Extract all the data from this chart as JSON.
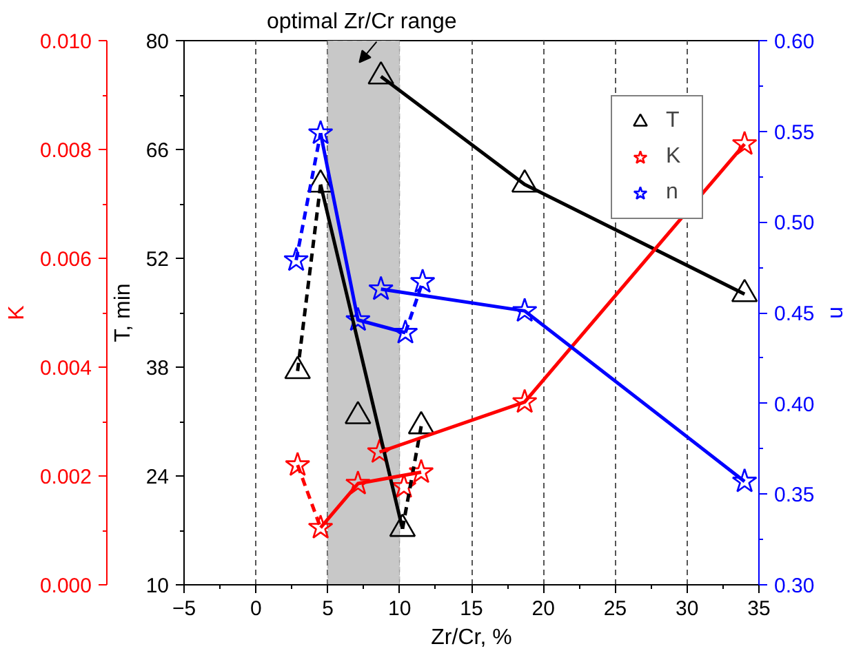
{
  "chart_data": {
    "type": "scatter",
    "xlabel": "Zr/Cr, %",
    "ylabel": "K",
    "y2label": "n",
    "y3label": "T, min",
    "xlim": [
      -5,
      35
    ],
    "xticks": [
      -5,
      0,
      5,
      10,
      15,
      20,
      25,
      30,
      35
    ],
    "ylim": [
      0,
      0.01
    ],
    "yticks": [
      {
        "value": 0,
        "label": "0.000"
      },
      {
        "value": 0.002,
        "label": "0.002"
      },
      {
        "value": 0.004,
        "label": "0.004"
      },
      {
        "value": 0.006,
        "label": "0.006"
      },
      {
        "value": 0.008,
        "label": "0.008"
      },
      {
        "value": 0.01,
        "label": "0.010"
      }
    ],
    "y2lim": [
      0.3,
      0.6
    ],
    "y2ticks": [
      {
        "value": 0.3,
        "label": "0.30"
      },
      {
        "value": 0.35,
        "label": "0.35"
      },
      {
        "value": 0.4,
        "label": "0.40"
      },
      {
        "value": 0.45,
        "label": "0.45"
      },
      {
        "value": 0.5,
        "label": "0.50"
      },
      {
        "value": 0.55,
        "label": "0.55"
      },
      {
        "value": 0.6,
        "label": "0.60"
      }
    ],
    "y3lim": [
      10,
      80
    ],
    "y3ticks": [
      10,
      24,
      38,
      52,
      66,
      80
    ],
    "grid": "x",
    "legend": "top right",
    "bands": [
      {
        "axis": "x",
        "from": 5,
        "to": 10,
        "label": "optimal Zr/Cr range",
        "color": "#c8c8c8"
      }
    ],
    "series": [
      {
        "name": "T",
        "marker": "triangle",
        "color": "#000000",
        "axis": "y3",
        "x": [
          2.9,
          4.5,
          7.1,
          8.7,
          10.2,
          11.5,
          18.7,
          34.0
        ],
        "values": [
          37.5,
          61.5,
          31.7,
          75.4,
          17.2,
          30.4,
          61.5,
          47.4
        ]
      },
      {
        "name": "K",
        "marker": "star",
        "color": "#ff0000",
        "axis": "y",
        "x": [
          2.9,
          4.5,
          7.1,
          8.6,
          10.3,
          11.5,
          18.7,
          34.0
        ],
        "values": [
          0.0022,
          0.00105,
          0.00186,
          0.00244,
          0.0018,
          0.00207,
          0.00336,
          0.0081
        ]
      },
      {
        "name": "n",
        "marker": "star",
        "color": "#0000ff",
        "axis": "y2",
        "x": [
          2.8,
          4.5,
          7.1,
          8.7,
          10.4,
          11.6,
          18.7,
          34.0
        ],
        "values": [
          0.479,
          0.549,
          0.446,
          0.463,
          0.439,
          0.467,
          0.451,
          0.357
        ]
      },
      {
        "type": "line",
        "color": "#000000",
        "axis": "y3",
        "line_style": "dashed",
        "x": [
          2.9,
          4.5
        ],
        "values": [
          37.5,
          61.5
        ]
      },
      {
        "type": "line",
        "color": "#000000",
        "axis": "y3",
        "line_style": "solid",
        "x": [
          4.5,
          10.2
        ],
        "values": [
          61.5,
          17.2
        ]
      },
      {
        "type": "line",
        "color": "#000000",
        "axis": "y3",
        "line_style": "dashed",
        "x": [
          10.2,
          11.5
        ],
        "values": [
          17.2,
          30.4
        ]
      },
      {
        "type": "line",
        "color": "#000000",
        "axis": "y3",
        "line_style": "solid",
        "x": [
          8.7,
          18.7,
          34.0
        ],
        "values": [
          75.4,
          61.5,
          47.4
        ]
      },
      {
        "type": "line",
        "color": "#ff0000",
        "axis": "y",
        "line_style": "dashed",
        "x": [
          2.9,
          4.5
        ],
        "values": [
          0.0022,
          0.00105
        ]
      },
      {
        "type": "line",
        "color": "#ff0000",
        "axis": "y",
        "line_style": "solid",
        "x": [
          4.5,
          7.1,
          11.5
        ],
        "values": [
          0.00105,
          0.00186,
          0.00207
        ]
      },
      {
        "type": "line",
        "color": "#ff0000",
        "axis": "y",
        "line_style": "solid",
        "x": [
          8.6,
          18.7,
          34.0
        ],
        "values": [
          0.00244,
          0.00336,
          0.0081
        ]
      },
      {
        "type": "line",
        "color": "#0000ff",
        "axis": "y2",
        "line_style": "dashed",
        "x": [
          2.8,
          4.5
        ],
        "values": [
          0.479,
          0.549
        ]
      },
      {
        "type": "line",
        "color": "#0000ff",
        "axis": "y2",
        "line_style": "solid",
        "x": [
          4.5,
          7.1,
          10.4
        ],
        "values": [
          0.549,
          0.446,
          0.439
        ]
      },
      {
        "type": "line",
        "color": "#0000ff",
        "axis": "y2",
        "line_style": "dashed",
        "x": [
          10.4,
          11.6
        ],
        "values": [
          0.439,
          0.467
        ]
      },
      {
        "type": "line",
        "color": "#0000ff",
        "axis": "y2",
        "line_style": "solid",
        "x": [
          8.7,
          18.7,
          34.0
        ],
        "values": [
          0.463,
          0.451,
          0.357
        ]
      }
    ]
  }
}
